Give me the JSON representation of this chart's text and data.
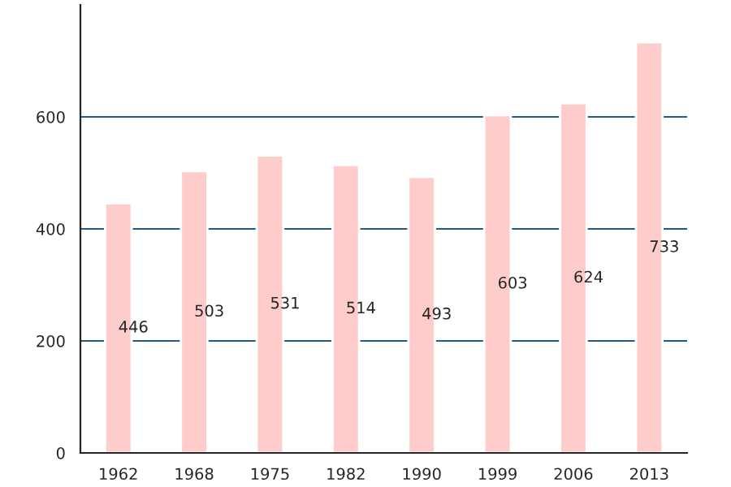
{
  "chart_data": {
    "type": "bar",
    "categories": [
      "1962",
      "1968",
      "1975",
      "1982",
      "1990",
      "1999",
      "2006",
      "2013"
    ],
    "values": [
      446,
      503,
      531,
      514,
      493,
      603,
      624,
      733
    ],
    "color": "#ffcccc",
    "ylim": [
      0,
      800
    ],
    "yticks": [
      0,
      200,
      400,
      600
    ],
    "grid": "y",
    "data_labels": true
  }
}
